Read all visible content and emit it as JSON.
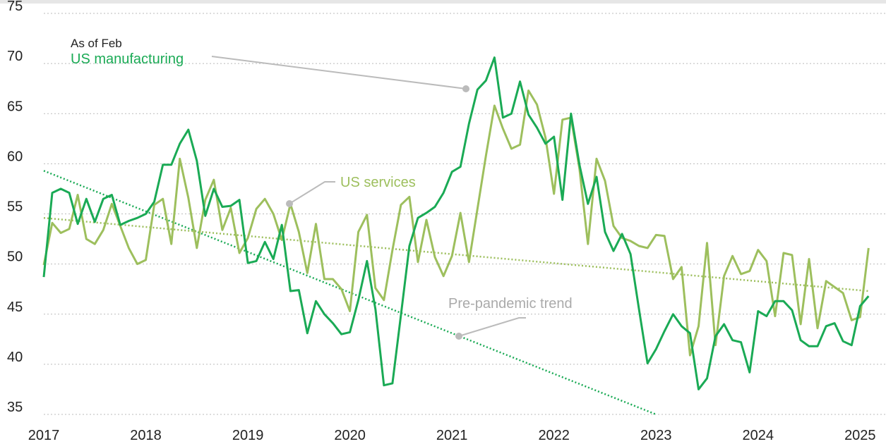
{
  "chart_data": {
    "type": "line",
    "annotations": {
      "note": "As of Feb",
      "manufacturing": "US manufacturing",
      "services": "US services",
      "trend": "Pre-pandemic trend"
    },
    "x": [
      2017,
      2017.083,
      2017.167,
      2017.25,
      2017.333,
      2017.417,
      2017.5,
      2017.583,
      2017.667,
      2017.75,
      2017.833,
      2017.917,
      2018,
      2018.083,
      2018.167,
      2018.25,
      2018.333,
      2018.417,
      2018.5,
      2018.583,
      2018.667,
      2018.75,
      2018.833,
      2018.917,
      2019,
      2019.083,
      2019.167,
      2019.25,
      2019.333,
      2019.417,
      2019.5,
      2019.583,
      2019.667,
      2019.75,
      2019.833,
      2019.917,
      2020,
      2020.083,
      2020.167,
      2020.25,
      2020.333,
      2020.417,
      2020.5,
      2020.583,
      2020.667,
      2020.75,
      2020.833,
      2020.917,
      2021,
      2021.083,
      2021.167,
      2021.25,
      2021.333,
      2021.417,
      2021.5,
      2021.583,
      2021.667,
      2021.75,
      2021.833,
      2021.917,
      2022,
      2022.083,
      2022.167,
      2022.25,
      2022.333,
      2022.417,
      2022.5,
      2022.583,
      2022.667,
      2022.75,
      2022.833,
      2022.917,
      2023,
      2023.083,
      2023.167,
      2023.25,
      2023.333,
      2023.417,
      2023.5,
      2023.583,
      2023.667,
      2023.75,
      2023.833,
      2023.917,
      2024,
      2024.083,
      2024.167,
      2024.25,
      2024.333,
      2024.417,
      2024.5,
      2024.583,
      2024.667,
      2024.75,
      2024.833,
      2024.917,
      2025,
      2025.083
    ],
    "series": [
      {
        "name": "US manufacturing",
        "color": "#1aaa55",
        "values": [
          48.7,
          57.1,
          57.5,
          57.1,
          54.0,
          56.5,
          54.2,
          56.5,
          56.9,
          53.9,
          54.3,
          54.6,
          55.0,
          56.2,
          59.9,
          59.9,
          62.0,
          63.4,
          60.3,
          54.8,
          57.5,
          55.7,
          55.8,
          56.4,
          50.1,
          50.3,
          52.2,
          50.5,
          53.9,
          47.3,
          47.4,
          43.1,
          46.3,
          45.0,
          44.1,
          43.0,
          43.2,
          46.4,
          50.3,
          45.5,
          37.9,
          38.1,
          44.9,
          51.8,
          54.6,
          55.1,
          55.7,
          57.1,
          59.2,
          59.7,
          64.0,
          67.4,
          68.3,
          70.6,
          64.6,
          65.0,
          68.2,
          64.9,
          63.6,
          62.0,
          62.7,
          56.4,
          65.0,
          59.9,
          56.0,
          58.7,
          53.2,
          51.3,
          53.0,
          51.0,
          45.5,
          40.1,
          41.5,
          43.3,
          45.0,
          43.8,
          43.1,
          37.5,
          38.6,
          42.8,
          44.0,
          42.4,
          42.2,
          39.2,
          45.3,
          44.8,
          46.3,
          46.3,
          45.4,
          42.4,
          41.8,
          41.8,
          43.8,
          44.1,
          42.3,
          41.9,
          45.8,
          46.8
        ]
      },
      {
        "name": "US services",
        "color": "#9dbf5d",
        "values": [
          49.9,
          54.1,
          53.1,
          53.5,
          56.9,
          52.5,
          52.0,
          53.4,
          56.0,
          53.8,
          51.6,
          50.0,
          50.4,
          55.9,
          56.5,
          52.0,
          60.5,
          56.6,
          51.6,
          56.4,
          58.4,
          53.4,
          55.6,
          51.1,
          52.6,
          55.5,
          56.5,
          55.0,
          52.4,
          56.0,
          53.2,
          49.1,
          54.0,
          48.5,
          48.5,
          47.5,
          45.3,
          53.2,
          54.9,
          47.6,
          46.4,
          51.4,
          55.9,
          56.7,
          50.2,
          54.4,
          50.7,
          48.8,
          50.8,
          55.1,
          50.2,
          55.5,
          60.8,
          65.8,
          63.5,
          61.5,
          61.9,
          67.3,
          65.9,
          62.6,
          57.0,
          64.4,
          64.6,
          59.5,
          52.0,
          60.5,
          58.3,
          53.8,
          52.6,
          52.3,
          51.8,
          51.6,
          52.9,
          52.8,
          48.5,
          49.7,
          40.9,
          43.8,
          52.1,
          41.9,
          48.8,
          50.8,
          49.0,
          49.3,
          51.4,
          50.3,
          44.8,
          51.1,
          50.9,
          44.0,
          50.5,
          43.6,
          48.3,
          47.7,
          47.1,
          44.4,
          44.7,
          51.6
        ]
      }
    ],
    "trends": [
      {
        "color": "#1aaa55",
        "x": [
          2017,
          2023
        ],
        "values": [
          59.3,
          35.0
        ]
      },
      {
        "color": "#9dbf5d",
        "x": [
          2017,
          2025.083
        ],
        "values": [
          54.6,
          47.3
        ]
      }
    ],
    "xlim": [
      2017,
      2025.15
    ],
    "xticks": [
      2017,
      2018,
      2019,
      2020,
      2021,
      2022,
      2023,
      2024,
      2025
    ],
    "ylim": [
      35,
      75
    ],
    "yticks": [
      35,
      40,
      45,
      50,
      55,
      60,
      65,
      70,
      75
    ],
    "grid": true
  }
}
